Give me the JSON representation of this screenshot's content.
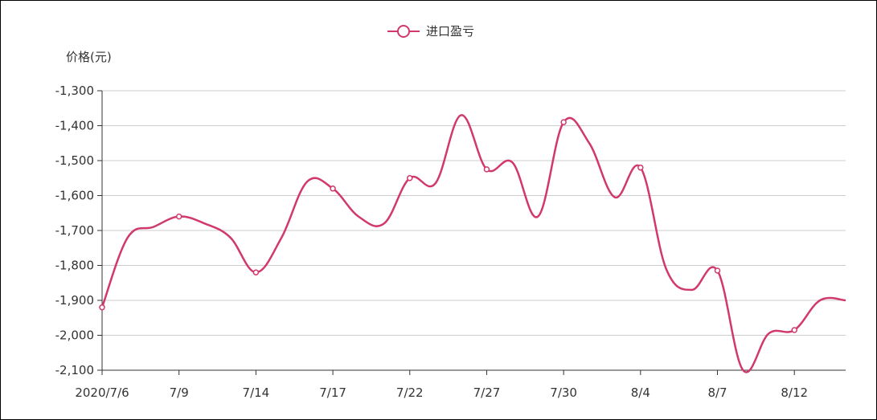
{
  "chart_data": {
    "type": "line",
    "title": "",
    "ylabel": "价格(元)",
    "xlabel": "",
    "ylim": [
      -2100,
      -1300
    ],
    "yticks": [
      -1300,
      -1400,
      -1500,
      -1600,
      -1700,
      -1800,
      -1900,
      -2000,
      -2100
    ],
    "ytick_labels": [
      "-1,300",
      "-1,400",
      "-1,500",
      "-1,600",
      "-1,700",
      "-1,800",
      "-1,900",
      "-2,000",
      "-2,100"
    ],
    "xtick_labels": [
      "2020/7/6",
      "7/9",
      "7/14",
      "7/17",
      "7/22",
      "7/27",
      "7/30",
      "8/4",
      "8/7",
      "8/12"
    ],
    "legend_position": "top-center",
    "grid": true,
    "series": [
      {
        "name": "进口盈亏",
        "color": "#d1386b",
        "x": [
          "2020/7/6",
          "7/7",
          "7/8",
          "7/9",
          "7/10",
          "7/13",
          "7/14",
          "7/15",
          "7/16",
          "7/17",
          "7/20",
          "7/21",
          "7/22",
          "7/23",
          "7/24",
          "7/27",
          "7/28",
          "7/29",
          "7/30",
          "7/31",
          "8/3",
          "8/4",
          "8/5",
          "8/6",
          "8/7",
          "8/10",
          "8/11",
          "8/12",
          "8/13",
          "8/14"
        ],
        "values": [
          -1920,
          -1720,
          -1690,
          -1660,
          -1680,
          -1720,
          -1820,
          -1720,
          -1560,
          -1580,
          -1660,
          -1680,
          -1550,
          -1565,
          -1370,
          -1525,
          -1505,
          -1660,
          -1390,
          -1450,
          -1605,
          -1520,
          -1810,
          -1870,
          -1815,
          -2100,
          -1995,
          -1985,
          -1900,
          -1900
        ],
        "marker_indices": [
          0,
          3,
          6,
          9,
          12,
          15,
          18,
          21,
          24,
          27
        ]
      }
    ]
  }
}
